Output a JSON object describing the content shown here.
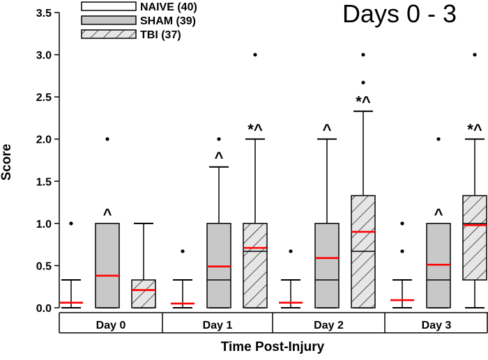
{
  "chart_data": {
    "type": "box",
    "title": "Days 0 - 3",
    "xlabel": "Time Post-Injury",
    "ylabel": "Score",
    "ylim": [
      0,
      3.5
    ],
    "yticks": [
      "0.0",
      "0.5",
      "1.0",
      "1.5",
      "2.0",
      "2.5",
      "3.0",
      "3.5"
    ],
    "categories": [
      "Day 0",
      "Day 1",
      "Day 2",
      "Day 3"
    ],
    "legend": [
      {
        "key": "naive",
        "label": "NAIVE (40)"
      },
      {
        "key": "sham",
        "label": "SHAM (39)"
      },
      {
        "key": "tbi",
        "label": "TBI (37)"
      }
    ],
    "styles": {
      "naive": {
        "fill": "#ffffff",
        "hatch": false
      },
      "sham": {
        "fill": "#c8c8c8",
        "hatch": false
      },
      "tbi": {
        "fill": "#e6e6e6",
        "hatch": true
      },
      "mean_color": "#ff0000"
    },
    "series": [
      {
        "key": "naive",
        "boxes": [
          {
            "q1": 0,
            "median": 0,
            "q3": 0,
            "whisker_low": 0,
            "whisker_high": 0.33,
            "mean": 0.06,
            "outliers": [
              1.0
            ],
            "annotation": ""
          },
          {
            "q1": 0,
            "median": 0,
            "q3": 0,
            "whisker_low": 0,
            "whisker_high": 0.33,
            "mean": 0.05,
            "outliers": [
              0.67
            ],
            "annotation": ""
          },
          {
            "q1": 0,
            "median": 0,
            "q3": 0,
            "whisker_low": 0,
            "whisker_high": 0.33,
            "mean": 0.06,
            "outliers": [
              0.67
            ],
            "annotation": ""
          },
          {
            "q1": 0,
            "median": 0,
            "q3": 0,
            "whisker_low": 0,
            "whisker_high": 0.33,
            "mean": 0.09,
            "outliers": [
              0.67,
              1.0
            ],
            "annotation": ""
          }
        ]
      },
      {
        "key": "sham",
        "boxes": [
          {
            "q1": 0,
            "median": 0,
            "q3": 1.0,
            "whisker_low": 0,
            "whisker_high": 1.0,
            "mean": 0.38,
            "outliers": [
              2.0
            ],
            "annotation": "^"
          },
          {
            "q1": 0,
            "median": 0.33,
            "q3": 1.0,
            "whisker_low": 0,
            "whisker_high": 1.67,
            "mean": 0.49,
            "outliers": [
              2.0
            ],
            "annotation": "^"
          },
          {
            "q1": 0,
            "median": 0.33,
            "q3": 1.0,
            "whisker_low": 0,
            "whisker_high": 2.0,
            "mean": 0.59,
            "outliers": [],
            "annotation": "^"
          },
          {
            "q1": 0,
            "median": 0.33,
            "q3": 1.0,
            "whisker_low": 0,
            "whisker_high": 1.0,
            "mean": 0.51,
            "outliers": [
              2.0
            ],
            "annotation": "^"
          }
        ]
      },
      {
        "key": "tbi",
        "boxes": [
          {
            "q1": 0,
            "median": 0,
            "q3": 0.33,
            "whisker_low": 0,
            "whisker_high": 1.0,
            "mean": 0.21,
            "outliers": [],
            "annotation": ""
          },
          {
            "q1": 0,
            "median": 0.67,
            "q3": 1.0,
            "whisker_low": 0,
            "whisker_high": 2.0,
            "mean": 0.71,
            "outliers": [
              3.0
            ],
            "annotation": "*^"
          },
          {
            "q1": 0,
            "median": 0.67,
            "q3": 1.33,
            "whisker_low": 0,
            "whisker_high": 2.33,
            "mean": 0.9,
            "outliers": [
              2.67,
              3.0
            ],
            "annotation": "*^"
          },
          {
            "q1": 0.33,
            "median": 1.0,
            "q3": 1.33,
            "whisker_low": 0,
            "whisker_high": 2.0,
            "mean": 0.98,
            "outliers": [
              3.0
            ],
            "annotation": "*^"
          }
        ]
      }
    ]
  }
}
